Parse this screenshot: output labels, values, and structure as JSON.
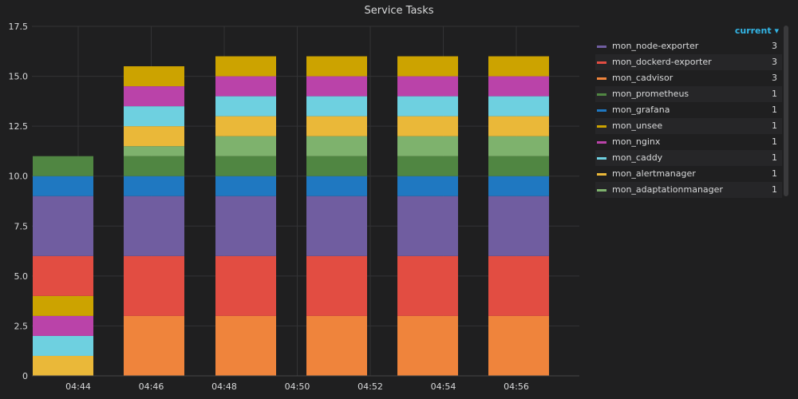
{
  "panel": {
    "title": "Service Tasks"
  },
  "legend": {
    "header": "current",
    "series": [
      {
        "name": "mon_node-exporter",
        "value": "3",
        "color": "#705da0"
      },
      {
        "name": "mon_dockerd-exporter",
        "value": "3",
        "color": "#e24d42"
      },
      {
        "name": "mon_cadvisor",
        "value": "3",
        "color": "#ef843c"
      },
      {
        "name": "mon_prometheus",
        "value": "1",
        "color": "#508642"
      },
      {
        "name": "mon_grafana",
        "value": "1",
        "color": "#1f78c1"
      },
      {
        "name": "mon_unsee",
        "value": "1",
        "color": "#cca300"
      },
      {
        "name": "mon_nginx",
        "value": "1",
        "color": "#ba43a9"
      },
      {
        "name": "mon_caddy",
        "value": "1",
        "color": "#6ed0e0"
      },
      {
        "name": "mon_alertmanager",
        "value": "1",
        "color": "#eab839"
      },
      {
        "name": "mon_adaptationmanager",
        "value": "1",
        "color": "#7eb26d"
      }
    ]
  },
  "chart_data": {
    "type": "bar",
    "stacked": true,
    "title": "Service Tasks",
    "xlabel": "",
    "ylabel": "",
    "ylim": [
      0,
      17.5
    ],
    "yticks": [
      "0",
      "2.5",
      "5.0",
      "7.5",
      "10.0",
      "12.5",
      "15.0",
      "17.5"
    ],
    "xticks": [
      "04:44",
      "04:46",
      "04:48",
      "04:50",
      "04:52",
      "04:54",
      "04:56"
    ],
    "grid": true,
    "legend_position": "right",
    "bars": [
      {
        "segments": [
          {
            "series": "mon_alertmanager",
            "value": 1
          },
          {
            "series": "mon_caddy",
            "value": 1
          },
          {
            "series": "mon_nginx",
            "value": 1
          },
          {
            "series": "mon_unsee",
            "value": 1
          },
          {
            "series": "mon_dockerd-exporter",
            "value": 2
          },
          {
            "series": "mon_node-exporter",
            "value": 3
          },
          {
            "series": "mon_grafana",
            "value": 1
          },
          {
            "series": "mon_prometheus",
            "value": 1
          }
        ]
      },
      {
        "segments": [
          {
            "series": "mon_cadvisor",
            "value": 3
          },
          {
            "series": "mon_dockerd-exporter",
            "value": 3
          },
          {
            "series": "mon_node-exporter",
            "value": 3
          },
          {
            "series": "mon_grafana",
            "value": 1
          },
          {
            "series": "mon_prometheus",
            "value": 1
          },
          {
            "series": "mon_adaptationmanager",
            "value": 0.5
          },
          {
            "series": "mon_alertmanager",
            "value": 1
          },
          {
            "series": "mon_caddy",
            "value": 1
          },
          {
            "series": "mon_nginx",
            "value": 1
          },
          {
            "series": "mon_unsee",
            "value": 1
          }
        ]
      },
      {
        "segments": [
          {
            "series": "mon_cadvisor",
            "value": 3
          },
          {
            "series": "mon_dockerd-exporter",
            "value": 3
          },
          {
            "series": "mon_node-exporter",
            "value": 3
          },
          {
            "series": "mon_grafana",
            "value": 1
          },
          {
            "series": "mon_prometheus",
            "value": 1
          },
          {
            "series": "mon_adaptationmanager",
            "value": 1
          },
          {
            "series": "mon_alertmanager",
            "value": 1
          },
          {
            "series": "mon_caddy",
            "value": 1
          },
          {
            "series": "mon_nginx",
            "value": 1
          },
          {
            "series": "mon_unsee",
            "value": 1
          }
        ]
      },
      {
        "segments": [
          {
            "series": "mon_cadvisor",
            "value": 3
          },
          {
            "series": "mon_dockerd-exporter",
            "value": 3
          },
          {
            "series": "mon_node-exporter",
            "value": 3
          },
          {
            "series": "mon_grafana",
            "value": 1
          },
          {
            "series": "mon_prometheus",
            "value": 1
          },
          {
            "series": "mon_adaptationmanager",
            "value": 1
          },
          {
            "series": "mon_alertmanager",
            "value": 1
          },
          {
            "series": "mon_caddy",
            "value": 1
          },
          {
            "series": "mon_nginx",
            "value": 1
          },
          {
            "series": "mon_unsee",
            "value": 1
          }
        ]
      },
      {
        "segments": [
          {
            "series": "mon_cadvisor",
            "value": 3
          },
          {
            "series": "mon_dockerd-exporter",
            "value": 3
          },
          {
            "series": "mon_node-exporter",
            "value": 3
          },
          {
            "series": "mon_grafana",
            "value": 1
          },
          {
            "series": "mon_prometheus",
            "value": 1
          },
          {
            "series": "mon_adaptationmanager",
            "value": 1
          },
          {
            "series": "mon_alertmanager",
            "value": 1
          },
          {
            "series": "mon_caddy",
            "value": 1
          },
          {
            "series": "mon_nginx",
            "value": 1
          },
          {
            "series": "mon_unsee",
            "value": 1
          }
        ]
      },
      {
        "segments": [
          {
            "series": "mon_cadvisor",
            "value": 3
          },
          {
            "series": "mon_dockerd-exporter",
            "value": 3
          },
          {
            "series": "mon_node-exporter",
            "value": 3
          },
          {
            "series": "mon_grafana",
            "value": 1
          },
          {
            "series": "mon_prometheus",
            "value": 1
          },
          {
            "series": "mon_adaptationmanager",
            "value": 1
          },
          {
            "series": "mon_alertmanager",
            "value": 1
          },
          {
            "series": "mon_caddy",
            "value": 1
          },
          {
            "series": "mon_nginx",
            "value": 1
          },
          {
            "series": "mon_unsee",
            "value": 1
          }
        ]
      }
    ]
  }
}
